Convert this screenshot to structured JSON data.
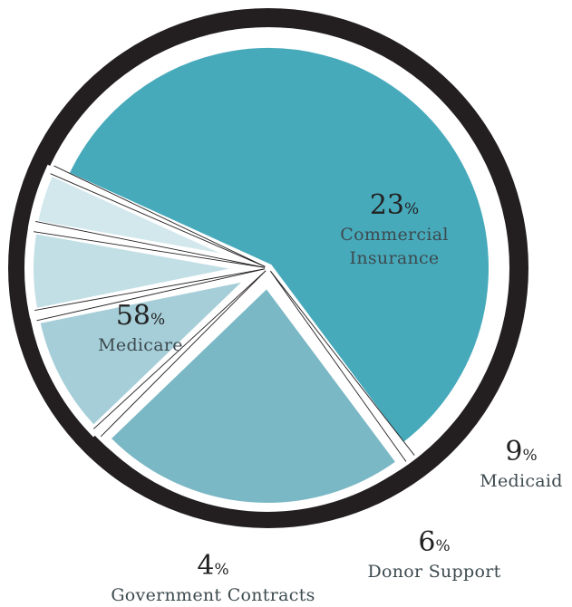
{
  "chart_data": {
    "type": "pie",
    "title": "",
    "slices": [
      {
        "label": "Medicare",
        "value": 58,
        "pct_text": "58",
        "color": "#47aabb"
      },
      {
        "label": "Commercial Insurance",
        "value": 23,
        "pct_text": "23",
        "color": "#7ab8c5",
        "label_lines": [
          "Commercial",
          "Insurance"
        ]
      },
      {
        "label": "Medicaid",
        "value": 9,
        "pct_text": "9",
        "color": "#a6ced8"
      },
      {
        "label": "Donor Support",
        "value": 6,
        "pct_text": "6",
        "color": "#c2dfe6"
      },
      {
        "label": "Government Contracts",
        "value": 4,
        "pct_text": "4",
        "color": "#d3e8ed"
      }
    ],
    "percent_sign": "%",
    "ring_color": "#231f20"
  }
}
